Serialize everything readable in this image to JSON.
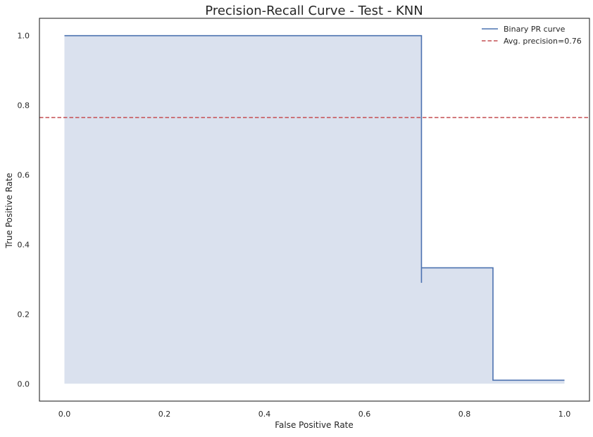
{
  "chart_data": {
    "type": "line",
    "title": "Precision-Recall Curve - Test - KNN",
    "xlabel": "False Positive Rate",
    "ylabel": "True Positive Rate",
    "xlim": [
      -0.05,
      1.05
    ],
    "ylim": [
      -0.05,
      1.05
    ],
    "xticks": [
      "0.0",
      "0.2",
      "0.4",
      "0.6",
      "0.8",
      "1.0"
    ],
    "yticks": [
      "0.0",
      "0.2",
      "0.4",
      "0.6",
      "0.8",
      "1.0"
    ],
    "grid": false,
    "legend_position": "upper right",
    "series": [
      {
        "name": "Binary PR curve",
        "style": "solid-step",
        "color": "#4c72b0",
        "fill": "#dae1ee",
        "x": [
          0.0,
          0.714,
          0.714,
          0.714,
          0.857,
          0.857,
          1.0
        ],
        "y": [
          1.0,
          1.0,
          0.29,
          0.333,
          0.333,
          0.01,
          0.01
        ]
      },
      {
        "name": "Avg. precision=0.76",
        "style": "dashed-horizontal",
        "color": "#c44e52",
        "y": 0.765
      }
    ]
  }
}
